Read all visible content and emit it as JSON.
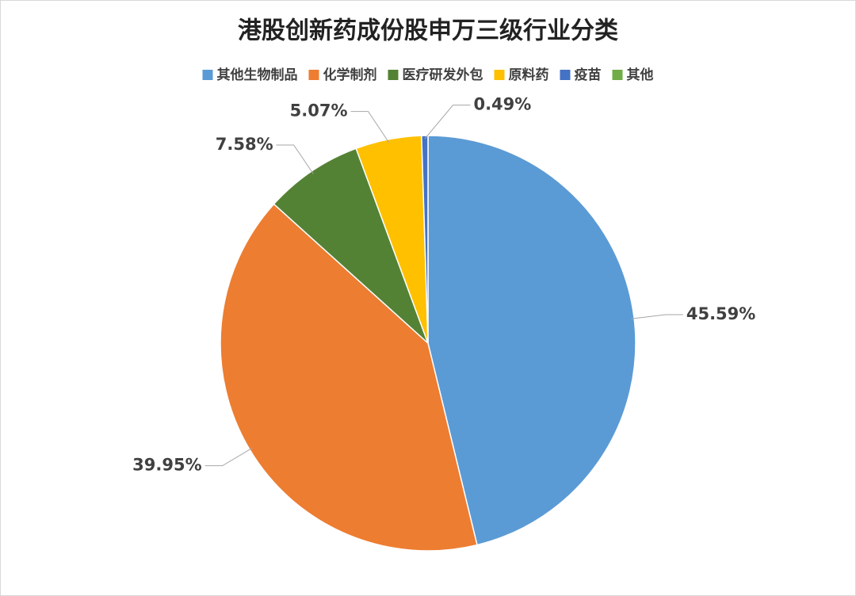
{
  "chart_data": {
    "type": "pie",
    "title": "港股创新药成份股申万三级行业分类",
    "categories": [
      "其他生物制品",
      "化学制剂",
      "医疗研发外包",
      "原料药",
      "疫苗",
      "其他"
    ],
    "values": [
      45.59,
      39.95,
      7.58,
      5.07,
      0.49,
      0
    ],
    "value_labels": [
      "45.59%",
      "39.95%",
      "7.58%",
      "5.07%",
      "0.49%",
      null
    ],
    "colors": [
      "#5b9bd5",
      "#ed7d31",
      "#548235",
      "#ffc000",
      "#4472c4",
      "#70ad47"
    ],
    "legend": "top"
  }
}
